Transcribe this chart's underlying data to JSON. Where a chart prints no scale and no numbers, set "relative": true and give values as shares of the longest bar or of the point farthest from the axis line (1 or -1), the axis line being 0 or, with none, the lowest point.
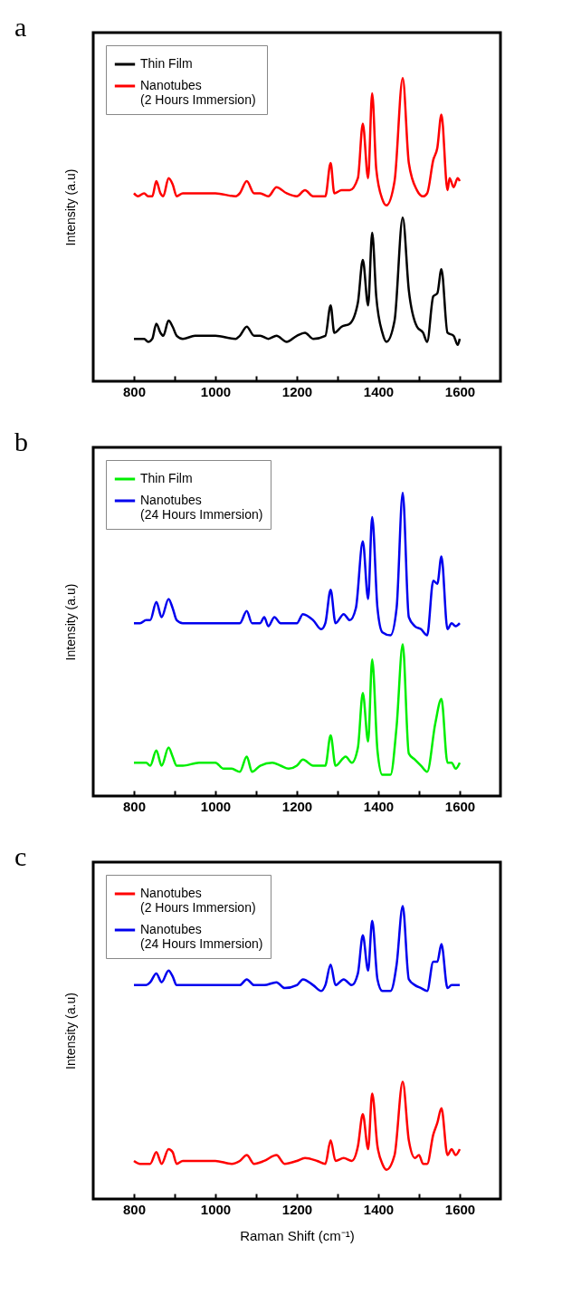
{
  "chart_data": [
    {
      "type": "line",
      "title": "a",
      "ylabel": "Intensity (a.u)",
      "relative": true,
      "legend": "top left",
      "xlim": [
        700,
        1700
      ],
      "xticks": [
        800,
        {
          "value": 900,
          "label": null
        },
        1000,
        {
          "value": 1100,
          "label": null
        },
        1200,
        {
          "value": 1300,
          "label": null
        },
        1400,
        {
          "value": 1500,
          "label": null
        },
        1600
      ],
      "tick_labels": "x",
      "series": [
        {
          "name": "Thin Film",
          "color": "#000000",
          "x": [
            800,
            810,
            825,
            835,
            845,
            855,
            865,
            872,
            885,
            895,
            905,
            920,
            950,
            1000,
            1050,
            1060,
            1077,
            1095,
            1110,
            1130,
            1150,
            1175,
            1200,
            1220,
            1240,
            1270,
            1283,
            1292,
            1310,
            1330,
            1350,
            1362,
            1375,
            1385,
            1395,
            1410,
            1420,
            1440,
            1460,
            1475,
            1495,
            1510,
            1520,
            1535,
            1545,
            1555,
            1570,
            1585,
            1595,
            1600
          ],
          "values": [
            0.14,
            0.14,
            0.14,
            0.13,
            0.14,
            0.19,
            0.16,
            0.15,
            0.2,
            0.18,
            0.15,
            0.14,
            0.15,
            0.15,
            0.14,
            0.15,
            0.18,
            0.15,
            0.15,
            0.14,
            0.15,
            0.13,
            0.15,
            0.16,
            0.14,
            0.15,
            0.25,
            0.16,
            0.18,
            0.19,
            0.26,
            0.4,
            0.25,
            0.49,
            0.28,
            0.16,
            0.13,
            0.2,
            0.54,
            0.3,
            0.18,
            0.16,
            0.13,
            0.28,
            0.29,
            0.37,
            0.16,
            0.15,
            0.12,
            0.14
          ]
        },
        {
          "name": "Nanotubes\n(2  Hours Immersion)",
          "color": "#ff0000",
          "x": [
            800,
            810,
            825,
            835,
            845,
            855,
            865,
            872,
            885,
            895,
            905,
            920,
            950,
            1000,
            1050,
            1060,
            1077,
            1095,
            1110,
            1130,
            1150,
            1175,
            1200,
            1220,
            1240,
            1270,
            1283,
            1292,
            1310,
            1330,
            1350,
            1362,
            1375,
            1385,
            1395,
            1410,
            1420,
            1440,
            1460,
            1475,
            1495,
            1510,
            1520,
            1535,
            1545,
            1555,
            1570,
            1575,
            1585,
            1595,
            1600
          ],
          "values": [
            0.62,
            0.61,
            0.62,
            0.61,
            0.61,
            0.66,
            0.62,
            0.61,
            0.67,
            0.65,
            0.61,
            0.62,
            0.62,
            0.62,
            0.61,
            0.62,
            0.66,
            0.62,
            0.62,
            0.61,
            0.64,
            0.62,
            0.61,
            0.63,
            0.61,
            0.61,
            0.72,
            0.62,
            0.63,
            0.63,
            0.67,
            0.85,
            0.67,
            0.95,
            0.7,
            0.6,
            0.58,
            0.66,
            1.0,
            0.72,
            0.63,
            0.61,
            0.62,
            0.73,
            0.77,
            0.88,
            0.63,
            0.67,
            0.64,
            0.67,
            0.66
          ]
        }
      ]
    },
    {
      "type": "line",
      "title": "b",
      "ylabel": "Intensity (a.u)",
      "relative": true,
      "legend": "top left",
      "xlim": [
        700,
        1700
      ],
      "xticks": [
        800,
        {
          "value": 900,
          "label": null
        },
        1000,
        {
          "value": 1100,
          "label": null
        },
        1200,
        {
          "value": 1300,
          "label": null
        },
        1400,
        {
          "value": 1500,
          "label": null
        },
        1600
      ],
      "tick_labels": "x",
      "series": [
        {
          "name": "Thin Film",
          "color": "#00ee00",
          "x": [
            800,
            815,
            830,
            840,
            855,
            868,
            885,
            895,
            905,
            920,
            960,
            1000,
            1020,
            1040,
            1060,
            1077,
            1090,
            1110,
            1140,
            1160,
            1180,
            1200,
            1215,
            1240,
            1270,
            1283,
            1295,
            1320,
            1335,
            1350,
            1362,
            1375,
            1385,
            1398,
            1410,
            1430,
            1445,
            1460,
            1475,
            1490,
            1505,
            1520,
            1540,
            1555,
            1570,
            1580,
            1590,
            1600
          ],
          "values": [
            0.11,
            0.11,
            0.11,
            0.1,
            0.15,
            0.1,
            0.16,
            0.13,
            0.1,
            0.1,
            0.11,
            0.11,
            0.09,
            0.09,
            0.08,
            0.13,
            0.08,
            0.1,
            0.11,
            0.1,
            0.09,
            0.1,
            0.12,
            0.1,
            0.1,
            0.2,
            0.1,
            0.13,
            0.11,
            0.16,
            0.34,
            0.18,
            0.45,
            0.15,
            0.07,
            0.07,
            0.23,
            0.5,
            0.14,
            0.12,
            0.1,
            0.08,
            0.24,
            0.32,
            0.11,
            0.11,
            0.09,
            0.11
          ]
        },
        {
          "name": "Nanotubes\n(24 Hours Immersion)",
          "color": "#0000ee",
          "x": [
            800,
            815,
            830,
            840,
            855,
            868,
            885,
            895,
            905,
            920,
            960,
            1000,
            1020,
            1040,
            1060,
            1077,
            1090,
            1110,
            1120,
            1130,
            1145,
            1160,
            1180,
            1200,
            1215,
            1240,
            1260,
            1270,
            1283,
            1295,
            1315,
            1330,
            1345,
            1362,
            1375,
            1385,
            1398,
            1410,
            1430,
            1445,
            1460,
            1475,
            1490,
            1505,
            1520,
            1535,
            1545,
            1555,
            1570,
            1580,
            1590,
            1600
          ],
          "values": [
            0.57,
            0.57,
            0.58,
            0.58,
            0.64,
            0.59,
            0.65,
            0.62,
            0.58,
            0.57,
            0.57,
            0.57,
            0.57,
            0.57,
            0.57,
            0.61,
            0.57,
            0.57,
            0.59,
            0.56,
            0.59,
            0.57,
            0.57,
            0.57,
            0.6,
            0.58,
            0.55,
            0.57,
            0.68,
            0.57,
            0.6,
            0.58,
            0.62,
            0.84,
            0.65,
            0.92,
            0.62,
            0.54,
            0.53,
            0.62,
            1.0,
            0.59,
            0.56,
            0.55,
            0.53,
            0.71,
            0.7,
            0.79,
            0.55,
            0.57,
            0.56,
            0.57
          ]
        }
      ]
    },
    {
      "type": "line",
      "title": "c",
      "xlabel": "Raman Shift (cm⁻¹)",
      "ylabel": "Intensity (a.u)",
      "relative": true,
      "legend": "top left",
      "xlim": [
        700,
        1700
      ],
      "xticks": [
        800,
        {
          "value": 900,
          "label": null
        },
        1000,
        {
          "value": 1100,
          "label": null
        },
        1200,
        {
          "value": 1300,
          "label": null
        },
        1400,
        {
          "value": 1500,
          "label": null
        },
        1600
      ],
      "tick_labels": "x",
      "series": [
        {
          "name": "Nanotubes\n(2 Hours Immersion)",
          "color": "#ff0000",
          "x": [
            800,
            815,
            830,
            840,
            855,
            868,
            885,
            895,
            905,
            920,
            960,
            1000,
            1040,
            1060,
            1077,
            1095,
            1120,
            1150,
            1170,
            1200,
            1220,
            1250,
            1270,
            1283,
            1295,
            1315,
            1335,
            1350,
            1362,
            1375,
            1385,
            1398,
            1410,
            1420,
            1440,
            1460,
            1475,
            1490,
            1500,
            1510,
            1520,
            1535,
            1545,
            1555,
            1570,
            1580,
            1590,
            1600
          ],
          "values": [
            0.13,
            0.12,
            0.12,
            0.12,
            0.16,
            0.12,
            0.17,
            0.16,
            0.12,
            0.13,
            0.13,
            0.13,
            0.12,
            0.13,
            0.15,
            0.12,
            0.13,
            0.15,
            0.12,
            0.13,
            0.14,
            0.13,
            0.12,
            0.2,
            0.13,
            0.14,
            0.13,
            0.18,
            0.29,
            0.17,
            0.36,
            0.18,
            0.12,
            0.1,
            0.15,
            0.4,
            0.2,
            0.14,
            0.15,
            0.12,
            0.12,
            0.22,
            0.26,
            0.31,
            0.15,
            0.17,
            0.15,
            0.17
          ]
        },
        {
          "name": "Nanotubes\n(24 Hours Immersion)",
          "color": "#0000ee",
          "x": [
            800,
            815,
            830,
            840,
            855,
            868,
            885,
            895,
            905,
            920,
            960,
            1000,
            1040,
            1060,
            1077,
            1095,
            1120,
            1150,
            1170,
            1200,
            1215,
            1240,
            1260,
            1270,
            1283,
            1295,
            1315,
            1335,
            1350,
            1362,
            1375,
            1385,
            1398,
            1410,
            1430,
            1445,
            1460,
            1475,
            1490,
            1505,
            1520,
            1535,
            1545,
            1555,
            1570,
            1580,
            1590,
            1600
          ],
          "values": [
            0.73,
            0.73,
            0.73,
            0.74,
            0.77,
            0.74,
            0.78,
            0.76,
            0.73,
            0.73,
            0.73,
            0.73,
            0.73,
            0.73,
            0.75,
            0.73,
            0.73,
            0.74,
            0.72,
            0.73,
            0.75,
            0.73,
            0.71,
            0.73,
            0.8,
            0.73,
            0.75,
            0.73,
            0.77,
            0.9,
            0.78,
            0.95,
            0.75,
            0.71,
            0.71,
            0.8,
            1.0,
            0.75,
            0.73,
            0.72,
            0.71,
            0.81,
            0.81,
            0.87,
            0.72,
            0.73,
            0.73,
            0.73
          ]
        }
      ]
    }
  ]
}
